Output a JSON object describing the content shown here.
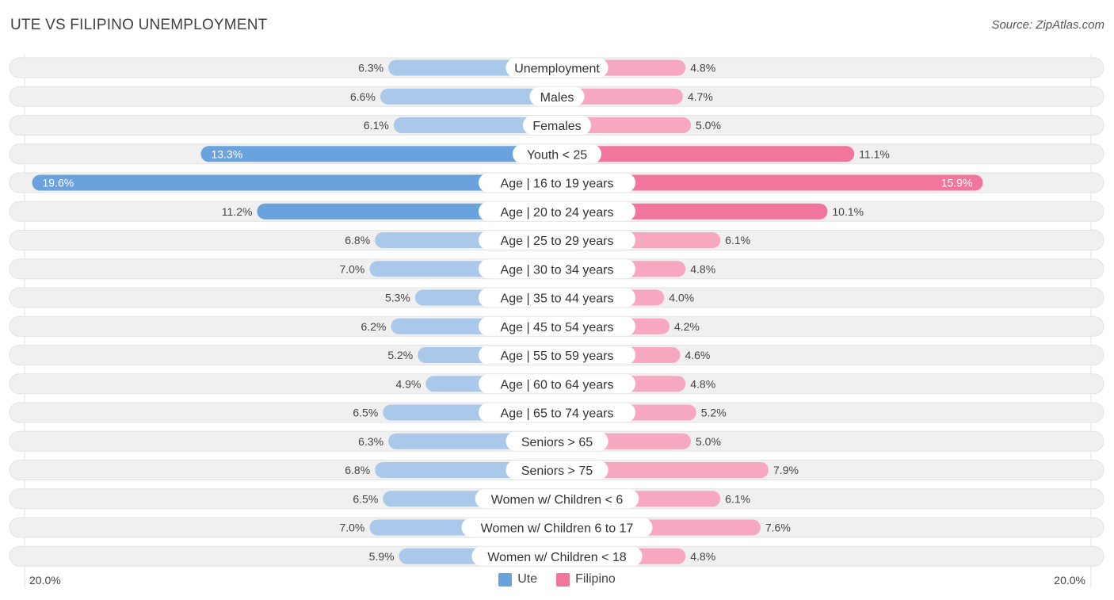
{
  "header": {
    "title": "UTE VS FILIPINO UNEMPLOYMENT",
    "source": "Source: ZipAtlas.com"
  },
  "colors": {
    "ute": "#6aa2de",
    "ute_light": "#a9c8ea",
    "filipino": "#f2769b",
    "filipino_light": "#f6a8c0",
    "row_bg": "#f0f0f0"
  },
  "chart_data": {
    "type": "bar",
    "orientation": "horizontal-diverging",
    "title": "UTE VS FILIPINO UNEMPLOYMENT",
    "categories": [
      "Unemployment",
      "Males",
      "Females",
      "Youth < 25",
      "Age | 16 to 19 years",
      "Age | 20 to 24 years",
      "Age | 25 to 29 years",
      "Age | 30 to 34 years",
      "Age | 35 to 44 years",
      "Age | 45 to 54 years",
      "Age | 55 to 59 years",
      "Age | 60 to 64 years",
      "Age | 65 to 74 years",
      "Seniors > 65",
      "Seniors > 75",
      "Women w/ Children < 6",
      "Women w/ Children 6 to 17",
      "Women w/ Children < 18"
    ],
    "series": [
      {
        "name": "Ute",
        "values": [
          6.3,
          6.6,
          6.1,
          13.3,
          19.6,
          11.2,
          6.8,
          7.0,
          5.3,
          6.2,
          5.2,
          4.9,
          6.5,
          6.3,
          6.8,
          6.5,
          7.0,
          5.9
        ],
        "labels": [
          "6.3%",
          "6.6%",
          "6.1%",
          "13.3%",
          "19.6%",
          "11.2%",
          "6.8%",
          "7.0%",
          "5.3%",
          "6.2%",
          "5.2%",
          "4.9%",
          "6.5%",
          "6.3%",
          "6.8%",
          "6.5%",
          "7.0%",
          "5.9%"
        ]
      },
      {
        "name": "Filipino",
        "values": [
          4.8,
          4.7,
          5.0,
          11.1,
          15.9,
          10.1,
          6.1,
          4.8,
          4.0,
          4.2,
          4.6,
          4.8,
          5.2,
          5.0,
          7.9,
          6.1,
          7.6,
          4.8
        ],
        "labels": [
          "4.8%",
          "4.7%",
          "5.0%",
          "11.1%",
          "15.9%",
          "10.1%",
          "6.1%",
          "4.8%",
          "4.0%",
          "4.2%",
          "4.6%",
          "4.8%",
          "5.2%",
          "5.0%",
          "7.9%",
          "6.1%",
          "7.6%",
          "4.8%"
        ]
      }
    ],
    "xlim": [
      -20.0,
      20.0
    ],
    "axis_min_label": "20.0%",
    "axis_max_label": "20.0%",
    "legend": [
      "Ute",
      "Filipino"
    ],
    "legend_position": "bottom-center"
  }
}
